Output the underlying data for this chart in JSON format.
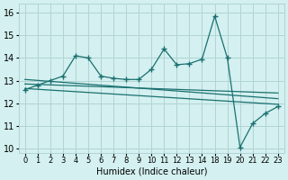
{
  "xlabel": "Humidex (Indice chaleur)",
  "bg_color": "#d4f0f0",
  "grid_color": "#b0d4d4",
  "line_color": "#1a7070",
  "xlim": [
    -0.5,
    23.5
  ],
  "ylim": [
    9.8,
    16.4
  ],
  "yticks": [
    10,
    11,
    12,
    13,
    14,
    15,
    16
  ],
  "xticks": [
    0,
    1,
    2,
    3,
    4,
    5,
    6,
    7,
    8,
    9,
    10,
    11,
    12,
    13,
    14,
    18,
    19,
    20,
    21,
    22,
    23
  ],
  "series1_x": [
    0,
    1,
    2,
    3,
    4,
    5,
    6,
    7,
    8,
    9,
    10,
    11,
    12,
    13,
    14,
    18,
    19,
    20,
    21,
    22,
    23
  ],
  "series1_y": [
    12.6,
    12.8,
    13.0,
    13.2,
    14.1,
    14.0,
    13.2,
    13.1,
    13.05,
    13.05,
    13.5,
    14.4,
    13.7,
    13.75,
    13.95,
    15.85,
    14.0,
    10.05,
    11.1,
    11.55,
    11.85
  ],
  "line2_x": [
    0,
    23
  ],
  "line2_y": [
    13.05,
    12.2
  ],
  "line3_x": [
    0,
    23
  ],
  "line3_y": [
    12.85,
    12.45
  ],
  "line4_x": [
    0,
    23
  ],
  "line4_y": [
    12.65,
    11.95
  ],
  "marker": "+",
  "markersize": 4,
  "linewidth": 0.9
}
